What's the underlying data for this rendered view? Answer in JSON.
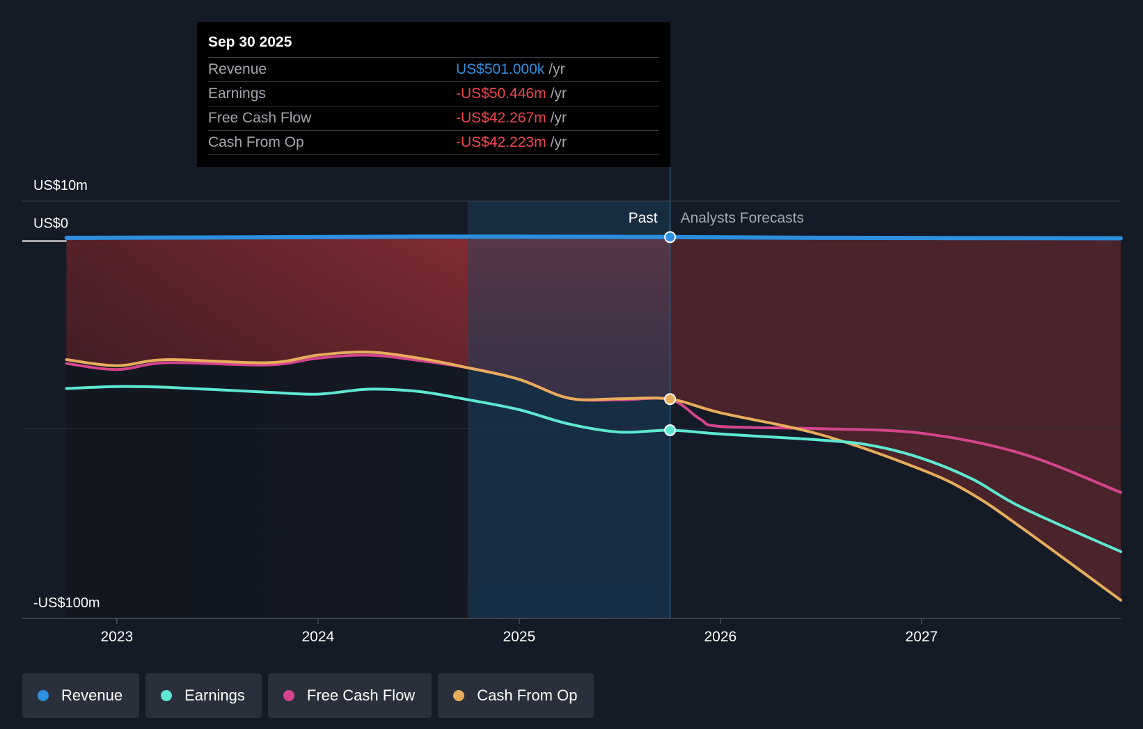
{
  "colors": {
    "revenue": "#2d8fe0",
    "earnings": "#5ee8d2",
    "free_cash_flow": "#d4458c",
    "cash_from_op": "#e8ad5c",
    "negative_value": "#f0464c"
  },
  "tooltip": {
    "date": "Sep 30 2025",
    "rows": [
      {
        "name": "Revenue",
        "value": "US$501.000k",
        "unit": "/yr",
        "series": "revenue"
      },
      {
        "name": "Earnings",
        "value": "-US$50.446m",
        "unit": "/yr",
        "series": "earnings"
      },
      {
        "name": "Free Cash Flow",
        "value": "-US$42.267m",
        "unit": "/yr",
        "series": "free_cash_flow"
      },
      {
        "name": "Cash From Op",
        "value": "-US$42.223m",
        "unit": "/yr",
        "series": "cash_from_op"
      }
    ]
  },
  "legend": [
    {
      "label": "Revenue",
      "series": "revenue"
    },
    {
      "label": "Earnings",
      "series": "earnings"
    },
    {
      "label": "Free Cash Flow",
      "series": "free_cash_flow"
    },
    {
      "label": "Cash From Op",
      "series": "cash_from_op"
    }
  ],
  "chart_data": {
    "type": "line",
    "title": "",
    "xlabel": "",
    "ylabel": "",
    "past_label": "Past",
    "forecast_label": "Analysts Forecasts",
    "divider_x": 2025.75,
    "highlight_start_x": 2024.75,
    "xlim": [
      2022.53,
      2027.99
    ],
    "ylim": [
      -100,
      10
    ],
    "y_ticks": [
      {
        "value": 10,
        "label": "US$10m"
      },
      {
        "value": 0,
        "label": "US$0"
      },
      {
        "value": -100,
        "label": "-US$100m"
      }
    ],
    "x_ticks": [
      {
        "value": 2023,
        "label": "2023"
      },
      {
        "value": 2024,
        "label": "2024"
      },
      {
        "value": 2025,
        "label": "2025"
      },
      {
        "value": 2026,
        "label": "2026"
      },
      {
        "value": 2027,
        "label": "2027"
      }
    ],
    "series": [
      {
        "name": "Revenue",
        "key": "revenue",
        "points": [
          [
            2022.75,
            0.3
          ],
          [
            2023.5,
            0.4
          ],
          [
            2024.5,
            0.6
          ],
          [
            2025.0,
            0.6
          ],
          [
            2025.75,
            0.5
          ],
          [
            2026.5,
            0.3
          ],
          [
            2027.99,
            0.2
          ]
        ],
        "marker_x": 2025.75
      },
      {
        "name": "Earnings",
        "key": "earnings",
        "points": [
          [
            2022.75,
            -39.4
          ],
          [
            2023.0,
            -38.9
          ],
          [
            2023.25,
            -39.1
          ],
          [
            2023.75,
            -40.4
          ],
          [
            2024.0,
            -40.9
          ],
          [
            2024.25,
            -39.6
          ],
          [
            2024.5,
            -40.2
          ],
          [
            2024.75,
            -42.4
          ],
          [
            2025.0,
            -45.0
          ],
          [
            2025.25,
            -48.8
          ],
          [
            2025.5,
            -50.9
          ],
          [
            2025.75,
            -50.4
          ],
          [
            2026.0,
            -51.4
          ],
          [
            2026.5,
            -53.0
          ],
          [
            2026.75,
            -54.4
          ],
          [
            2027.0,
            -57.8
          ],
          [
            2027.25,
            -63.2
          ],
          [
            2027.5,
            -70.8
          ],
          [
            2027.99,
            -82.4
          ]
        ],
        "marker_x": 2025.75
      },
      {
        "name": "Free Cash Flow",
        "key": "free_cash_flow",
        "points": [
          [
            2022.75,
            -32.8
          ],
          [
            2023.0,
            -34.4
          ],
          [
            2023.25,
            -32.6
          ],
          [
            2023.75,
            -33.2
          ],
          [
            2024.0,
            -31.4
          ],
          [
            2024.25,
            -30.6
          ],
          [
            2024.5,
            -32.0
          ],
          [
            2024.75,
            -34.0
          ],
          [
            2025.0,
            -37.0
          ],
          [
            2025.25,
            -42.0
          ],
          [
            2025.5,
            -42.4
          ],
          [
            2025.75,
            -42.3
          ],
          [
            2025.9,
            -47.5
          ],
          [
            2026.0,
            -49.4
          ],
          [
            2026.5,
            -50.0
          ],
          [
            2027.0,
            -51.2
          ],
          [
            2027.5,
            -56.6
          ],
          [
            2027.99,
            -66.8
          ]
        ],
        "marker_x": 2025.75
      },
      {
        "name": "Cash From Op",
        "key": "cash_from_op",
        "points": [
          [
            2022.75,
            -31.8
          ],
          [
            2023.0,
            -33.4
          ],
          [
            2023.25,
            -31.8
          ],
          [
            2023.75,
            -32.6
          ],
          [
            2024.0,
            -30.6
          ],
          [
            2024.25,
            -29.8
          ],
          [
            2024.5,
            -31.4
          ],
          [
            2024.75,
            -34.0
          ],
          [
            2025.0,
            -37.0
          ],
          [
            2025.25,
            -42.0
          ],
          [
            2025.5,
            -42.1
          ],
          [
            2025.75,
            -42.2
          ],
          [
            2026.0,
            -45.8
          ],
          [
            2026.5,
            -51.6
          ],
          [
            2027.0,
            -60.8
          ],
          [
            2027.25,
            -67.2
          ],
          [
            2027.5,
            -76.2
          ],
          [
            2027.99,
            -95.2
          ]
        ],
        "marker_x": 2025.75
      }
    ]
  }
}
